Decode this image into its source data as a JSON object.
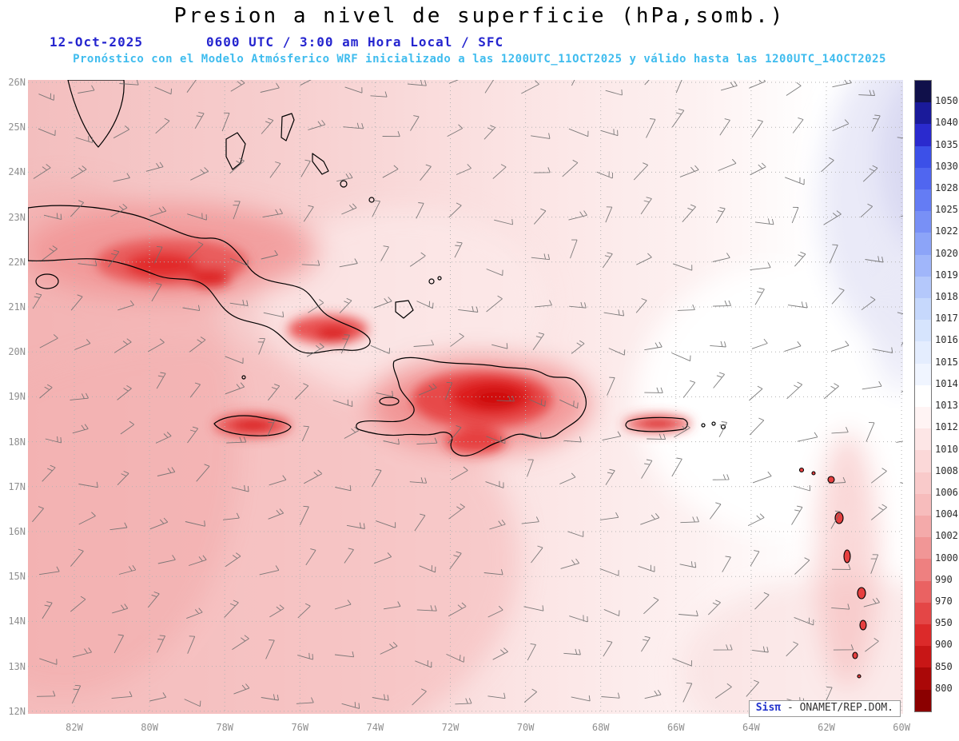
{
  "header": {
    "title": "Presion a nivel de superficie (hPa,somb.)",
    "date": "12-Oct-2025",
    "time_line": "0600 UTC / 3:00 am Hora Local / SFC",
    "subtitle": "Pronóstico con el Modelo Atmósferico WRF inicializado a las 1200UTC_11OCT2025 y válido hasta las  1200UTC_14OCT2025"
  },
  "map": {
    "lat_labels": [
      "26N",
      "25N",
      "24N",
      "23N",
      "22N",
      "21N",
      "20N",
      "19N",
      "18N",
      "17N",
      "16N",
      "15N",
      "14N",
      "13N",
      "12N"
    ],
    "lon_labels": [
      "82W",
      "80W",
      "78W",
      "76W",
      "74W",
      "72W",
      "70W",
      "68W",
      "66W",
      "64W",
      "62W",
      "60W"
    ]
  },
  "colorbar": {
    "unit": "hPa",
    "labels": [
      "1050",
      "1040",
      "1035",
      "1030",
      "1028",
      "1025",
      "1022",
      "1020",
      "1019",
      "1018",
      "1017",
      "1016",
      "1015",
      "1014",
      "1013",
      "1012",
      "1010",
      "1008",
      "1006",
      "1004",
      "1002",
      "1000",
      "990",
      "970",
      "950",
      "900",
      "850",
      "800"
    ],
    "colors": [
      "#10104a",
      "#1a1a9a",
      "#2a2ace",
      "#3c50e8",
      "#5066f0",
      "#647cf4",
      "#7890f6",
      "#8ca4f8",
      "#a0b6fa",
      "#b4c8fb",
      "#c6d8fc",
      "#d6e4fd",
      "#e4edfe",
      "#f0f5ff",
      "#ffffff",
      "#fff4f4",
      "#fde6e6",
      "#fbd8d8",
      "#f9caca",
      "#f7bcbc",
      "#f4aaaa",
      "#f19696",
      "#ee8080",
      "#ea6262",
      "#e44646",
      "#dc2a2a",
      "#c81616",
      "#aa0808",
      "#8b0000"
    ]
  },
  "credit": {
    "brand": "Sisπ",
    "text": "- ONAMET/REP.DOM."
  },
  "palette": {
    "title_color": "#000000",
    "date_blue": "#2525cf",
    "subtitle_cyan": "#3fbcee",
    "barb_gray": "#6e6e6e",
    "grid_gray": "#b3b3b3",
    "axis_label_gray": "#8f8f8f"
  }
}
